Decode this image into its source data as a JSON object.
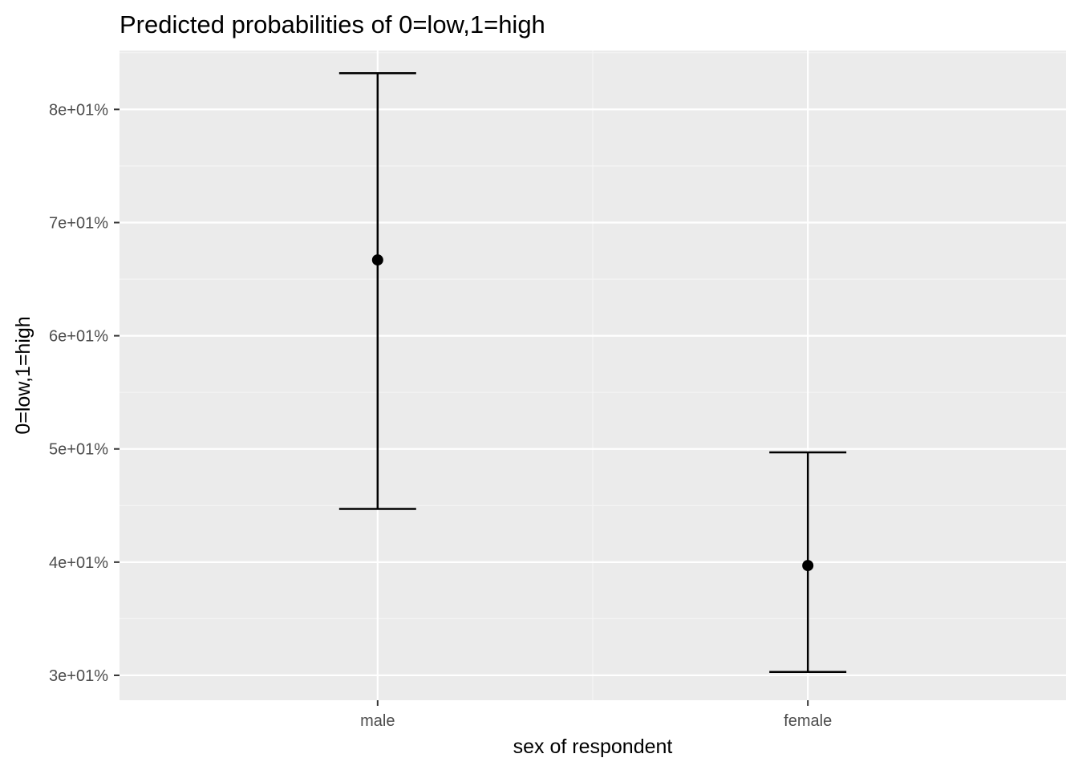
{
  "chart_data": {
    "type": "scatter",
    "subtype": "point-errorbar",
    "title": "Predicted probabilities of 0=low,1=high",
    "xlabel": "sex of respondent",
    "ylabel": "0=low,1=high",
    "categories": [
      "male",
      "female"
    ],
    "values": [
      66.7,
      39.7
    ],
    "lower": [
      44.7,
      30.3
    ],
    "upper": [
      83.2,
      49.7
    ],
    "ylim": [
      27.8,
      85.2
    ],
    "yticks": [
      30,
      40,
      50,
      60,
      70,
      80
    ],
    "ytick_labels": [
      "3e+01%",
      "4e+01%",
      "5e+01%",
      "6e+01%",
      "7e+01%",
      "8e+01%"
    ],
    "grid": true,
    "legend": "none",
    "colors": {
      "panel_background": "#ebebeb",
      "grid_major": "#ffffff",
      "grid_minor": "#f5f5f5",
      "mark": "#000000",
      "tick_text": "#4d4d4d",
      "axis_tick": "#333333"
    }
  }
}
